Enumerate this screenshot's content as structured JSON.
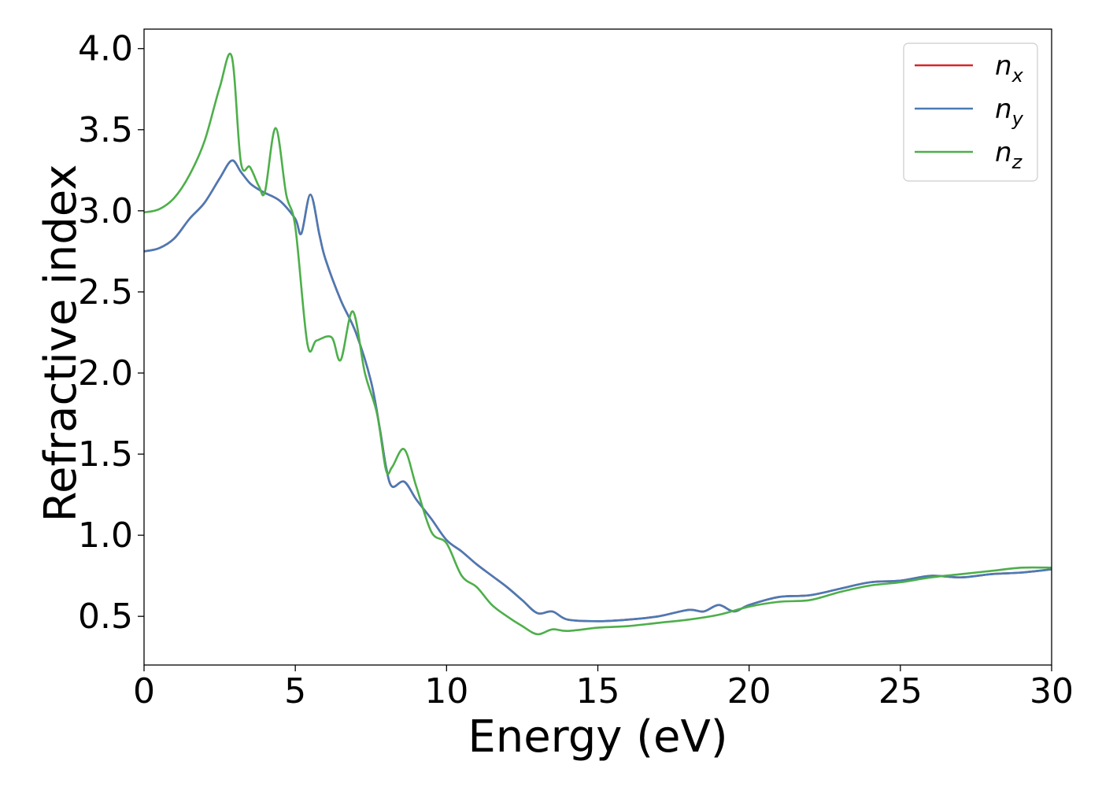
{
  "chart_data": {
    "type": "line",
    "xlabel": "Energy (eV)",
    "ylabel": "Refractive index",
    "xlim": [
      0,
      30
    ],
    "ylim": [
      0.2,
      4.12
    ],
    "xticks": [
      0,
      5,
      10,
      15,
      20,
      25,
      30
    ],
    "xtick_labels": [
      "0",
      "5",
      "10",
      "15",
      "20",
      "25",
      "30"
    ],
    "yticks": [
      0.5,
      1.0,
      1.5,
      2.0,
      2.5,
      3.0,
      3.5,
      4.0
    ],
    "ytick_labels": [
      "0.5",
      "1.0",
      "1.5",
      "2.0",
      "2.5",
      "3.0",
      "3.5",
      "4.0"
    ],
    "grid": false,
    "legend_position": "top-right",
    "series": [
      {
        "name": "n_x",
        "legend_main": "n",
        "legend_sub": "x",
        "color": "#d62728",
        "x": [
          0,
          0.5,
          1.0,
          1.5,
          2.0,
          2.5,
          2.9,
          3.2,
          3.5,
          3.8,
          4.0,
          4.5,
          5.0,
          5.2,
          5.5,
          5.8,
          6.0,
          6.5,
          7.0,
          7.5,
          7.8,
          8.0,
          8.2,
          8.6,
          9.0,
          9.5,
          10.0,
          10.5,
          11.0,
          11.5,
          12.0,
          12.5,
          13.0,
          13.5,
          14.0,
          15.0,
          16.0,
          17.0,
          18.0,
          18.5,
          19.0,
          19.5,
          20.0,
          21.0,
          22.0,
          23.0,
          24.0,
          25.0,
          26.0,
          27.0,
          28.0,
          29.0,
          30.0
        ],
        "values": [
          2.75,
          2.77,
          2.83,
          2.95,
          3.05,
          3.2,
          3.31,
          3.24,
          3.17,
          3.13,
          3.11,
          3.06,
          2.95,
          2.86,
          3.1,
          2.85,
          2.7,
          2.45,
          2.25,
          1.95,
          1.65,
          1.42,
          1.3,
          1.33,
          1.22,
          1.1,
          0.97,
          0.9,
          0.82,
          0.75,
          0.68,
          0.6,
          0.52,
          0.53,
          0.48,
          0.47,
          0.48,
          0.5,
          0.54,
          0.53,
          0.57,
          0.53,
          0.57,
          0.62,
          0.63,
          0.67,
          0.71,
          0.72,
          0.75,
          0.74,
          0.76,
          0.77,
          0.79
        ]
      },
      {
        "name": "n_y",
        "legend_main": "n",
        "legend_sub": "y",
        "color": "#4a7ab5",
        "x": [
          0,
          0.5,
          1.0,
          1.5,
          2.0,
          2.5,
          2.9,
          3.2,
          3.5,
          3.8,
          4.0,
          4.5,
          5.0,
          5.2,
          5.5,
          5.8,
          6.0,
          6.5,
          7.0,
          7.5,
          7.8,
          8.0,
          8.2,
          8.6,
          9.0,
          9.5,
          10.0,
          10.5,
          11.0,
          11.5,
          12.0,
          12.5,
          13.0,
          13.5,
          14.0,
          15.0,
          16.0,
          17.0,
          18.0,
          18.5,
          19.0,
          19.5,
          20.0,
          21.0,
          22.0,
          23.0,
          24.0,
          25.0,
          26.0,
          27.0,
          28.0,
          29.0,
          30.0
        ],
        "values": [
          2.75,
          2.77,
          2.83,
          2.95,
          3.05,
          3.2,
          3.31,
          3.24,
          3.17,
          3.13,
          3.11,
          3.06,
          2.95,
          2.86,
          3.1,
          2.85,
          2.7,
          2.45,
          2.25,
          1.95,
          1.65,
          1.42,
          1.3,
          1.33,
          1.22,
          1.1,
          0.97,
          0.9,
          0.82,
          0.75,
          0.68,
          0.6,
          0.52,
          0.53,
          0.48,
          0.47,
          0.48,
          0.5,
          0.54,
          0.53,
          0.57,
          0.53,
          0.57,
          0.62,
          0.63,
          0.67,
          0.71,
          0.72,
          0.75,
          0.74,
          0.76,
          0.77,
          0.79
        ]
      },
      {
        "name": "n_z",
        "legend_main": "n",
        "legend_sub": "z",
        "color": "#4daf4a",
        "x": [
          0,
          0.5,
          1.0,
          1.5,
          2.0,
          2.5,
          2.9,
          3.2,
          3.5,
          3.8,
          4.0,
          4.35,
          4.7,
          5.0,
          5.4,
          5.7,
          6.2,
          6.5,
          6.9,
          7.3,
          7.7,
          8.0,
          8.2,
          8.6,
          9.0,
          9.5,
          10.0,
          10.5,
          11.0,
          11.5,
          12.0,
          12.5,
          13.0,
          13.5,
          14.0,
          15.0,
          16.0,
          17.0,
          18.0,
          19.0,
          20.0,
          21.0,
          22.0,
          23.0,
          24.0,
          25.0,
          26.0,
          27.0,
          28.0,
          29.0,
          30.0
        ],
        "values": [
          2.99,
          3.01,
          3.08,
          3.22,
          3.43,
          3.76,
          3.95,
          3.3,
          3.27,
          3.15,
          3.12,
          3.51,
          3.1,
          2.9,
          2.18,
          2.2,
          2.22,
          2.08,
          2.38,
          2.0,
          1.75,
          1.4,
          1.42,
          1.53,
          1.3,
          1.02,
          0.95,
          0.75,
          0.68,
          0.57,
          0.5,
          0.44,
          0.39,
          0.42,
          0.41,
          0.43,
          0.44,
          0.46,
          0.48,
          0.51,
          0.56,
          0.59,
          0.6,
          0.65,
          0.69,
          0.71,
          0.74,
          0.76,
          0.78,
          0.8,
          0.8
        ]
      }
    ]
  }
}
